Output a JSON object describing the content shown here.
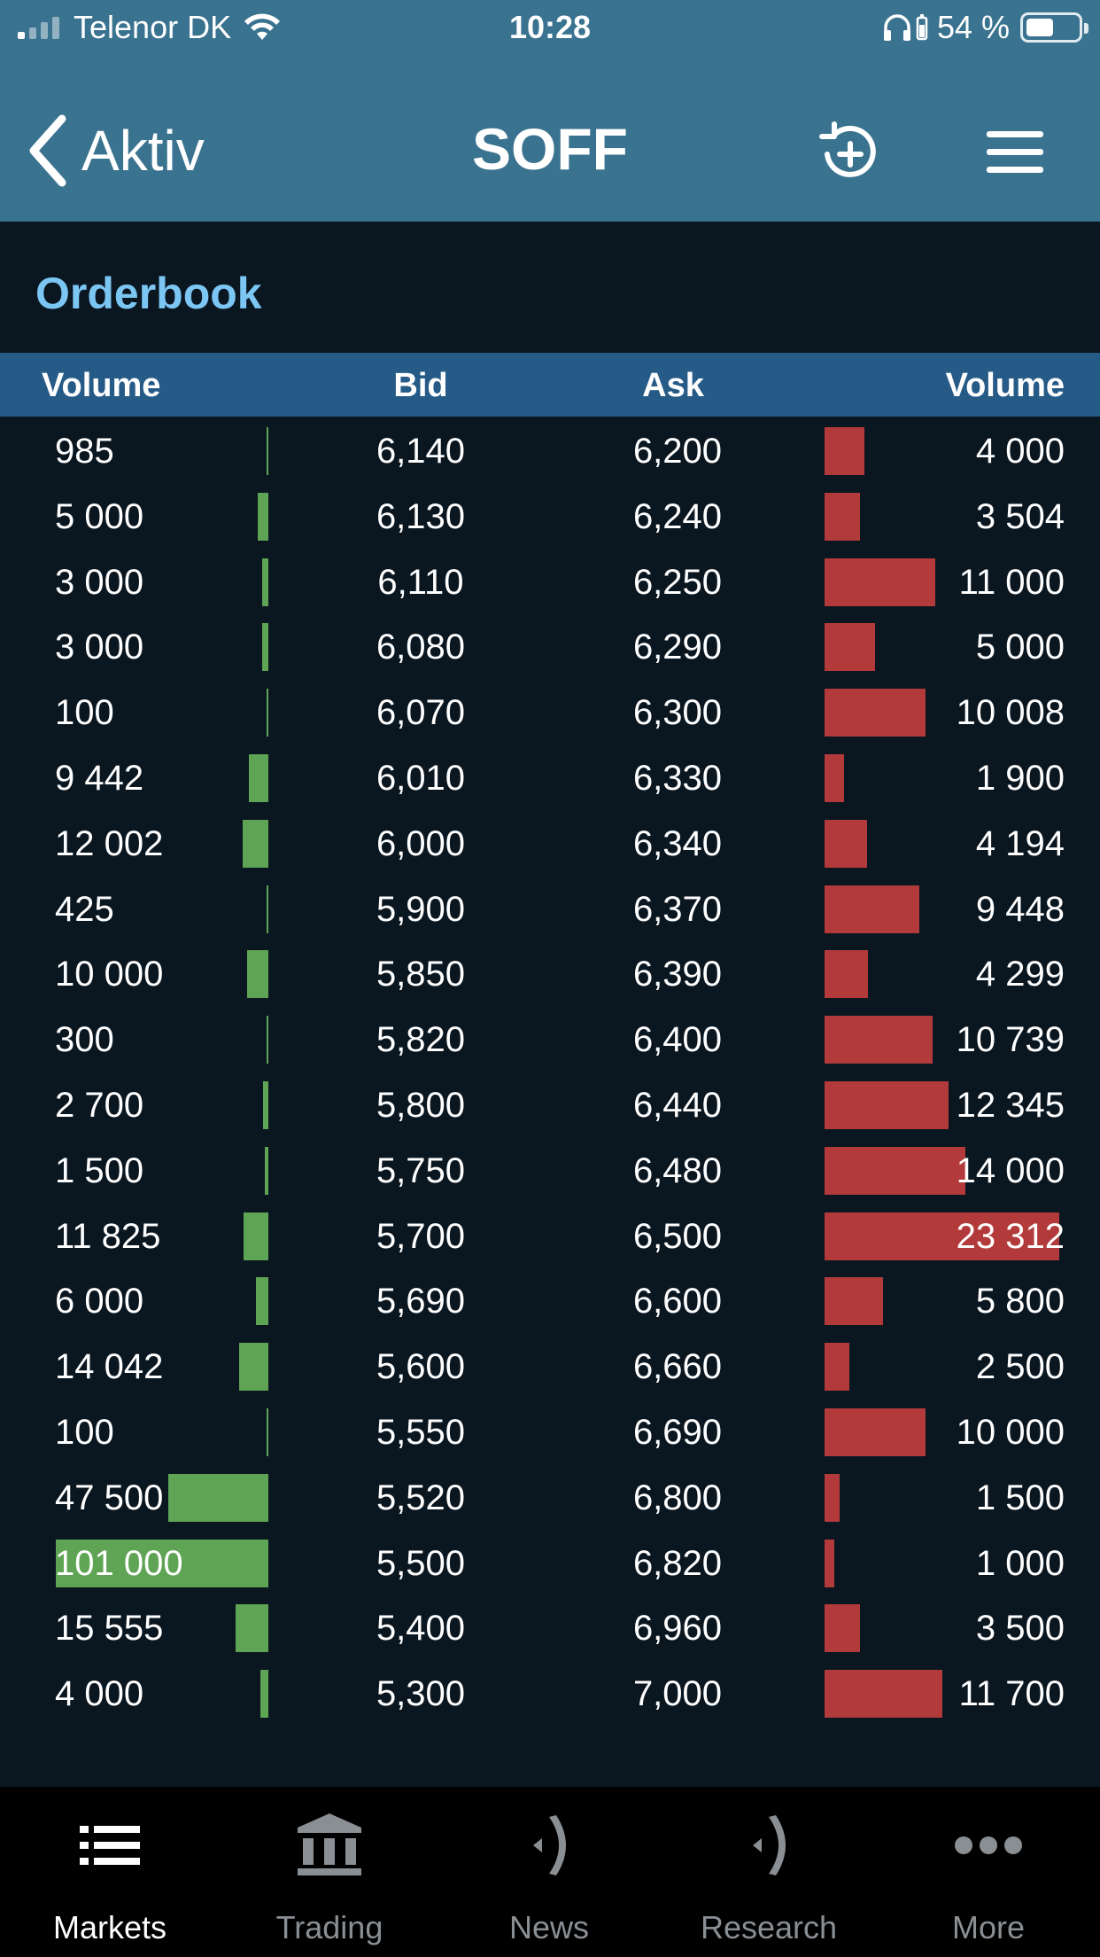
{
  "status_bar": {
    "carrier": "Telenor DK",
    "time": "10:28",
    "battery": "54 %"
  },
  "nav": {
    "back_label": "Aktiv",
    "title": "SOFF",
    "history_icon": "history-plus-icon",
    "menu_icon": "hamburger-menu-icon"
  },
  "orderbook": {
    "title": "Orderbook",
    "headers": {
      "bid_volume": "Volume",
      "bid": "Bid",
      "ask": "Ask",
      "ask_volume": "Volume"
    },
    "rows": [
      {
        "bid_volume": "985",
        "bid": "6,140",
        "ask": "6,200",
        "ask_volume": "4 000",
        "bid_qty": 985,
        "ask_qty": 4000
      },
      {
        "bid_volume": "5 000",
        "bid": "6,130",
        "ask": "6,240",
        "ask_volume": "3 504",
        "bid_qty": 5000,
        "ask_qty": 3504
      },
      {
        "bid_volume": "3 000",
        "bid": "6,110",
        "ask": "6,250",
        "ask_volume": "11 000",
        "bid_qty": 3000,
        "ask_qty": 11000
      },
      {
        "bid_volume": "3 000",
        "bid": "6,080",
        "ask": "6,290",
        "ask_volume": "5 000",
        "bid_qty": 3000,
        "ask_qty": 5000
      },
      {
        "bid_volume": "100",
        "bid": "6,070",
        "ask": "6,300",
        "ask_volume": "10 008",
        "bid_qty": 100,
        "ask_qty": 10008
      },
      {
        "bid_volume": "9 442",
        "bid": "6,010",
        "ask": "6,330",
        "ask_volume": "1 900",
        "bid_qty": 9442,
        "ask_qty": 1900
      },
      {
        "bid_volume": "12 002",
        "bid": "6,000",
        "ask": "6,340",
        "ask_volume": "4 194",
        "bid_qty": 12002,
        "ask_qty": 4194
      },
      {
        "bid_volume": "425",
        "bid": "5,900",
        "ask": "6,370",
        "ask_volume": "9 448",
        "bid_qty": 425,
        "ask_qty": 9448
      },
      {
        "bid_volume": "10 000",
        "bid": "5,850",
        "ask": "6,390",
        "ask_volume": "4 299",
        "bid_qty": 10000,
        "ask_qty": 4299
      },
      {
        "bid_volume": "300",
        "bid": "5,820",
        "ask": "6,400",
        "ask_volume": "10 739",
        "bid_qty": 300,
        "ask_qty": 10739
      },
      {
        "bid_volume": "2 700",
        "bid": "5,800",
        "ask": "6,440",
        "ask_volume": "12 345",
        "bid_qty": 2700,
        "ask_qty": 12345
      },
      {
        "bid_volume": "1 500",
        "bid": "5,750",
        "ask": "6,480",
        "ask_volume": "14 000",
        "bid_qty": 1500,
        "ask_qty": 14000
      },
      {
        "bid_volume": "11 825",
        "bid": "5,700",
        "ask": "6,500",
        "ask_volume": "23 312",
        "bid_qty": 11825,
        "ask_qty": 23312
      },
      {
        "bid_volume": "6 000",
        "bid": "5,690",
        "ask": "6,600",
        "ask_volume": "5 800",
        "bid_qty": 6000,
        "ask_qty": 5800
      },
      {
        "bid_volume": "14 042",
        "bid": "5,600",
        "ask": "6,660",
        "ask_volume": "2 500",
        "bid_qty": 14042,
        "ask_qty": 2500
      },
      {
        "bid_volume": "100",
        "bid": "5,550",
        "ask": "6,690",
        "ask_volume": "10 000",
        "bid_qty": 100,
        "ask_qty": 10000
      },
      {
        "bid_volume": "47 500",
        "bid": "5,520",
        "ask": "6,800",
        "ask_volume": "1 500",
        "bid_qty": 47500,
        "ask_qty": 1500
      },
      {
        "bid_volume": "101 000",
        "bid": "5,500",
        "ask": "6,820",
        "ask_volume": "1 000",
        "bid_qty": 101000,
        "ask_qty": 1000
      },
      {
        "bid_volume": "15 555",
        "bid": "5,400",
        "ask": "6,960",
        "ask_volume": "3 500",
        "bid_qty": 15555,
        "ask_qty": 3500
      },
      {
        "bid_volume": "4 000",
        "bid": "5,300",
        "ask": "7,000",
        "ask_volume": "11 700",
        "bid_qty": 4000,
        "ask_qty": 11700
      }
    ]
  },
  "tabs": [
    {
      "label": "Markets",
      "icon": "list-icon",
      "active": true
    },
    {
      "label": "Trading",
      "icon": "bank-icon",
      "active": false
    },
    {
      "label": "News",
      "icon": "news-broadcast-icon",
      "active": false
    },
    {
      "label": "Research",
      "icon": "research-broadcast-icon",
      "active": false
    },
    {
      "label": "More",
      "icon": "more-dots-icon",
      "active": false
    }
  ],
  "colors": {
    "header_bg": "#3a7390",
    "table_head_bg": "#265a87",
    "page_bg": "#0a1620",
    "bid_bar": "#5fa454",
    "ask_bar": "#b33a3a",
    "section_title": "#7cc6f4"
  }
}
